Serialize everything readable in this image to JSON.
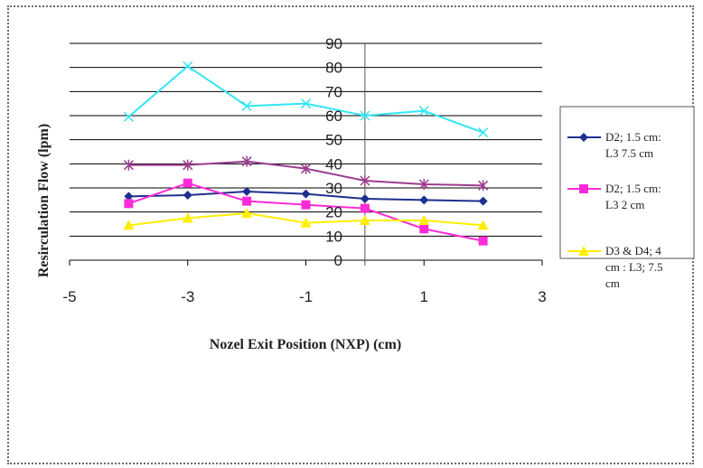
{
  "chart_data": {
    "type": "line",
    "title": "",
    "xlabel": "Nozel  Exit Position (NXP) (cm)",
    "ylabel": "Resirculation Flow  (lpm)",
    "xlim": [
      -5,
      3
    ],
    "ylim": [
      0,
      90
    ],
    "x_ticks": [
      "-5",
      "-3",
      "-1",
      "1",
      "3"
    ],
    "y_ticks": [
      "0",
      "10",
      "20",
      "30",
      "40",
      "50",
      "60",
      "70",
      "80",
      "90"
    ],
    "x": [
      -4,
      -3,
      -2,
      -1,
      0,
      1,
      2
    ],
    "grid": true,
    "legend_position": "right",
    "series": [
      {
        "name": "D2; 1.5 cm: L3 7.5 cm",
        "legend_lines": [
          "D2; 1.5 cm:",
          "L3 7.5 cm"
        ],
        "color": "#1f2f8f",
        "marker": "diamond",
        "values": [
          26.5,
          27,
          28.5,
          27.5,
          25.5,
          25,
          24.5
        ]
      },
      {
        "name": "D2; 1.5 cm: L3  2 cm",
        "legend_lines": [
          "D2; 1.5 cm:",
          "L3  2 cm"
        ],
        "color": "#ff2bd6",
        "marker": "square",
        "values": [
          23.5,
          32,
          24.5,
          23,
          21.5,
          13,
          8
        ]
      },
      {
        "name": "D3 & D4; 4 cm : L3; 7.5 cm",
        "legend_lines": [
          "D3 & D4; 4",
          "cm : L3; 7.5",
          "cm"
        ],
        "color": "#ffee00",
        "marker": "triangle",
        "values": [
          14.5,
          17.5,
          19.5,
          15.5,
          16.5,
          16.5,
          14.5
        ]
      },
      {
        "color": "#9b3d8f",
        "marker": "star",
        "values": [
          39.5,
          39.5,
          41,
          38,
          33,
          31.5,
          31
        ]
      },
      {
        "color": "#33e6f2",
        "marker": "x",
        "values": [
          59.5,
          80.5,
          64,
          65,
          60,
          62,
          53
        ]
      }
    ]
  }
}
